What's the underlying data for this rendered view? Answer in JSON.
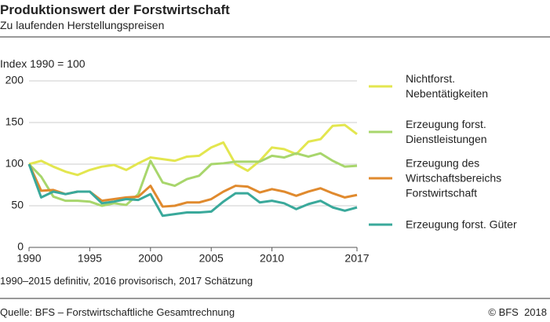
{
  "chart_data": {
    "type": "line",
    "title": "Produktionswert der Forstwirtschaft",
    "subtitle": "Zu laufenden Herstellungspreisen",
    "y_label": "Index 1990 = 100",
    "note": "1990–2015 definitiv, 2016 provisorisch, 2017 Schätzung",
    "source": "Quelle: BFS – Forstwirtschaftliche Gesamtrechnung",
    "copyright": "© BFS  2018",
    "x": [
      1990,
      1991,
      1992,
      1993,
      1994,
      1995,
      1996,
      1997,
      1998,
      1999,
      2000,
      2001,
      2002,
      2003,
      2004,
      2005,
      2006,
      2007,
      2008,
      2009,
      2010,
      2011,
      2012,
      2013,
      2014,
      2015,
      2016,
      2017
    ],
    "xlim": [
      1990,
      2017
    ],
    "xticks": [
      1990,
      1995,
      2000,
      2005,
      2010,
      2017
    ],
    "ylim": [
      0,
      200
    ],
    "yticks": [
      0,
      50,
      100,
      150,
      200
    ],
    "grid": true,
    "series": [
      {
        "name": "Nichtforst. Nebentätigkeiten",
        "color": "#e3e64f",
        "values": [
          100,
          104,
          97,
          91,
          87,
          93,
          97,
          99,
          93,
          101,
          108,
          106,
          104,
          109,
          110,
          120,
          126,
          100,
          92,
          104,
          120,
          118,
          112,
          127,
          130,
          146,
          147,
          136
        ]
      },
      {
        "name": "Erzeugung forst. Dienstleistungen",
        "color": "#a8d66c",
        "values": [
          100,
          85,
          61,
          56,
          56,
          55,
          50,
          53,
          51,
          64,
          104,
          78,
          74,
          82,
          86,
          100,
          101,
          103,
          103,
          103,
          110,
          108,
          113,
          109,
          113,
          104,
          97,
          98
        ]
      },
      {
        "name": "Erzeugung des Wirtschaftsbereichs Forstwirtschaft",
        "color": "#e08a2e",
        "values": [
          100,
          68,
          69,
          64,
          67,
          67,
          56,
          58,
          60,
          61,
          74,
          49,
          50,
          54,
          54,
          58,
          67,
          74,
          73,
          66,
          70,
          67,
          62,
          67,
          71,
          65,
          60,
          63
        ]
      },
      {
        "name": "Erzeugung forst. Güter",
        "color": "#3aa99b",
        "values": [
          100,
          60,
          67,
          64,
          67,
          67,
          53,
          55,
          58,
          57,
          64,
          38,
          40,
          42,
          42,
          43,
          55,
          65,
          65,
          54,
          56,
          53,
          46,
          52,
          56,
          48,
          44,
          48
        ]
      }
    ]
  }
}
